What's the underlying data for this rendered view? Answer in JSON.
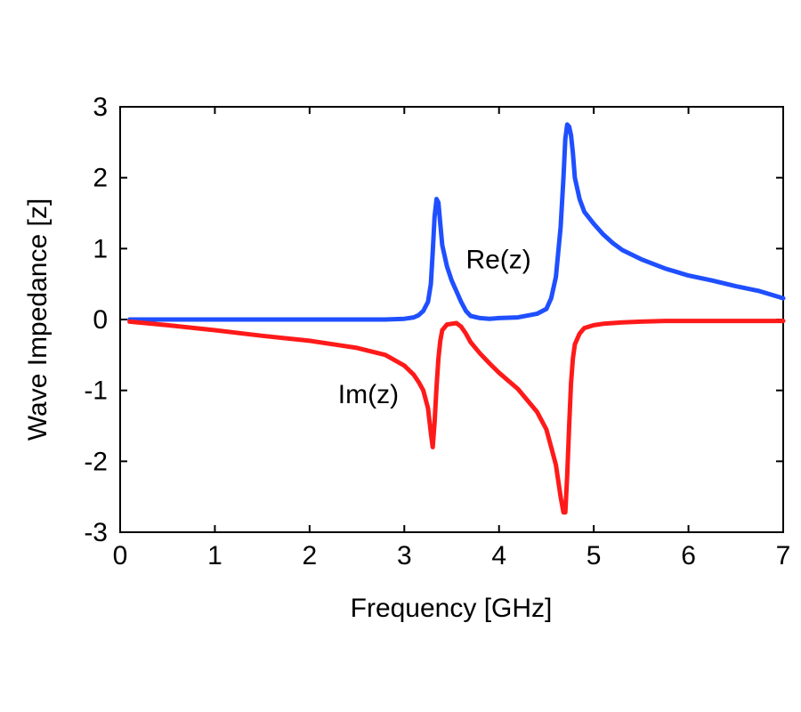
{
  "chart_data": {
    "type": "line",
    "title": "",
    "xlabel": "Frequency [GHz]",
    "ylabel": "Wave Impedance [z]",
    "xlim": [
      0,
      7
    ],
    "ylim": [
      -3,
      3
    ],
    "xticks": [
      0,
      1,
      2,
      3,
      4,
      5,
      6,
      7
    ],
    "yticks": [
      3,
      2,
      1,
      0,
      -1,
      -2,
      -3
    ],
    "grid": false,
    "legend": "none",
    "annotations": [
      {
        "text": "Re(z)",
        "x": 3.65,
        "y": 0.72
      },
      {
        "text": "Im(z)",
        "x": 2.3,
        "y": -1.18
      }
    ],
    "series": [
      {
        "color": "#1f4fff",
        "x": [
          0.1,
          0.5,
          1.0,
          1.5,
          2.0,
          2.5,
          2.8,
          3.0,
          3.1,
          3.15,
          3.2,
          3.25,
          3.28,
          3.3,
          3.32,
          3.34,
          3.36,
          3.38,
          3.4,
          3.45,
          3.5,
          3.55,
          3.6,
          3.65,
          3.7,
          3.8,
          3.9,
          4.0,
          4.2,
          4.4,
          4.5,
          4.55,
          4.6,
          4.65,
          4.68,
          4.7,
          4.72,
          4.74,
          4.76,
          4.78,
          4.8,
          4.85,
          4.9,
          5.0,
          5.1,
          5.2,
          5.3,
          5.5,
          5.75,
          6.0,
          6.25,
          6.5,
          6.75,
          7.0
        ],
        "y": [
          0.0,
          0.0,
          0.0,
          0.0,
          0.0,
          0.0,
          0.0,
          0.01,
          0.03,
          0.06,
          0.12,
          0.25,
          0.5,
          0.95,
          1.45,
          1.7,
          1.65,
          1.35,
          1.05,
          0.75,
          0.55,
          0.4,
          0.25,
          0.12,
          0.05,
          0.02,
          0.01,
          0.02,
          0.03,
          0.08,
          0.15,
          0.3,
          0.6,
          1.3,
          2.0,
          2.55,
          2.75,
          2.72,
          2.6,
          2.35,
          2.0,
          1.7,
          1.52,
          1.35,
          1.2,
          1.08,
          0.98,
          0.85,
          0.72,
          0.62,
          0.55,
          0.47,
          0.4,
          0.3
        ]
      },
      {
        "color": "#ff1a1a",
        "x": [
          0.1,
          0.5,
          1.0,
          1.5,
          2.0,
          2.5,
          2.8,
          3.0,
          3.1,
          3.15,
          3.2,
          3.25,
          3.28,
          3.3,
          3.32,
          3.34,
          3.36,
          3.38,
          3.4,
          3.45,
          3.5,
          3.55,
          3.6,
          3.65,
          3.7,
          3.8,
          3.9,
          4.0,
          4.2,
          4.4,
          4.5,
          4.55,
          4.6,
          4.65,
          4.68,
          4.7,
          4.72,
          4.74,
          4.76,
          4.78,
          4.8,
          4.85,
          4.9,
          5.0,
          5.1,
          5.2,
          5.3,
          5.5,
          5.75,
          6.0,
          6.25,
          6.5,
          6.75,
          7.0
        ],
        "y": [
          -0.03,
          -0.08,
          -0.15,
          -0.23,
          -0.3,
          -0.4,
          -0.5,
          -0.65,
          -0.78,
          -0.88,
          -1.0,
          -1.25,
          -1.6,
          -1.8,
          -1.45,
          -0.95,
          -0.55,
          -0.3,
          -0.15,
          -0.07,
          -0.06,
          -0.05,
          -0.1,
          -0.2,
          -0.32,
          -0.48,
          -0.62,
          -0.75,
          -0.98,
          -1.3,
          -1.55,
          -1.8,
          -2.05,
          -2.5,
          -2.72,
          -2.72,
          -2.2,
          -1.5,
          -0.9,
          -0.55,
          -0.35,
          -0.2,
          -0.12,
          -0.08,
          -0.06,
          -0.05,
          -0.04,
          -0.03,
          -0.02,
          -0.02,
          -0.02,
          -0.02,
          -0.02,
          -0.02
        ]
      }
    ]
  }
}
